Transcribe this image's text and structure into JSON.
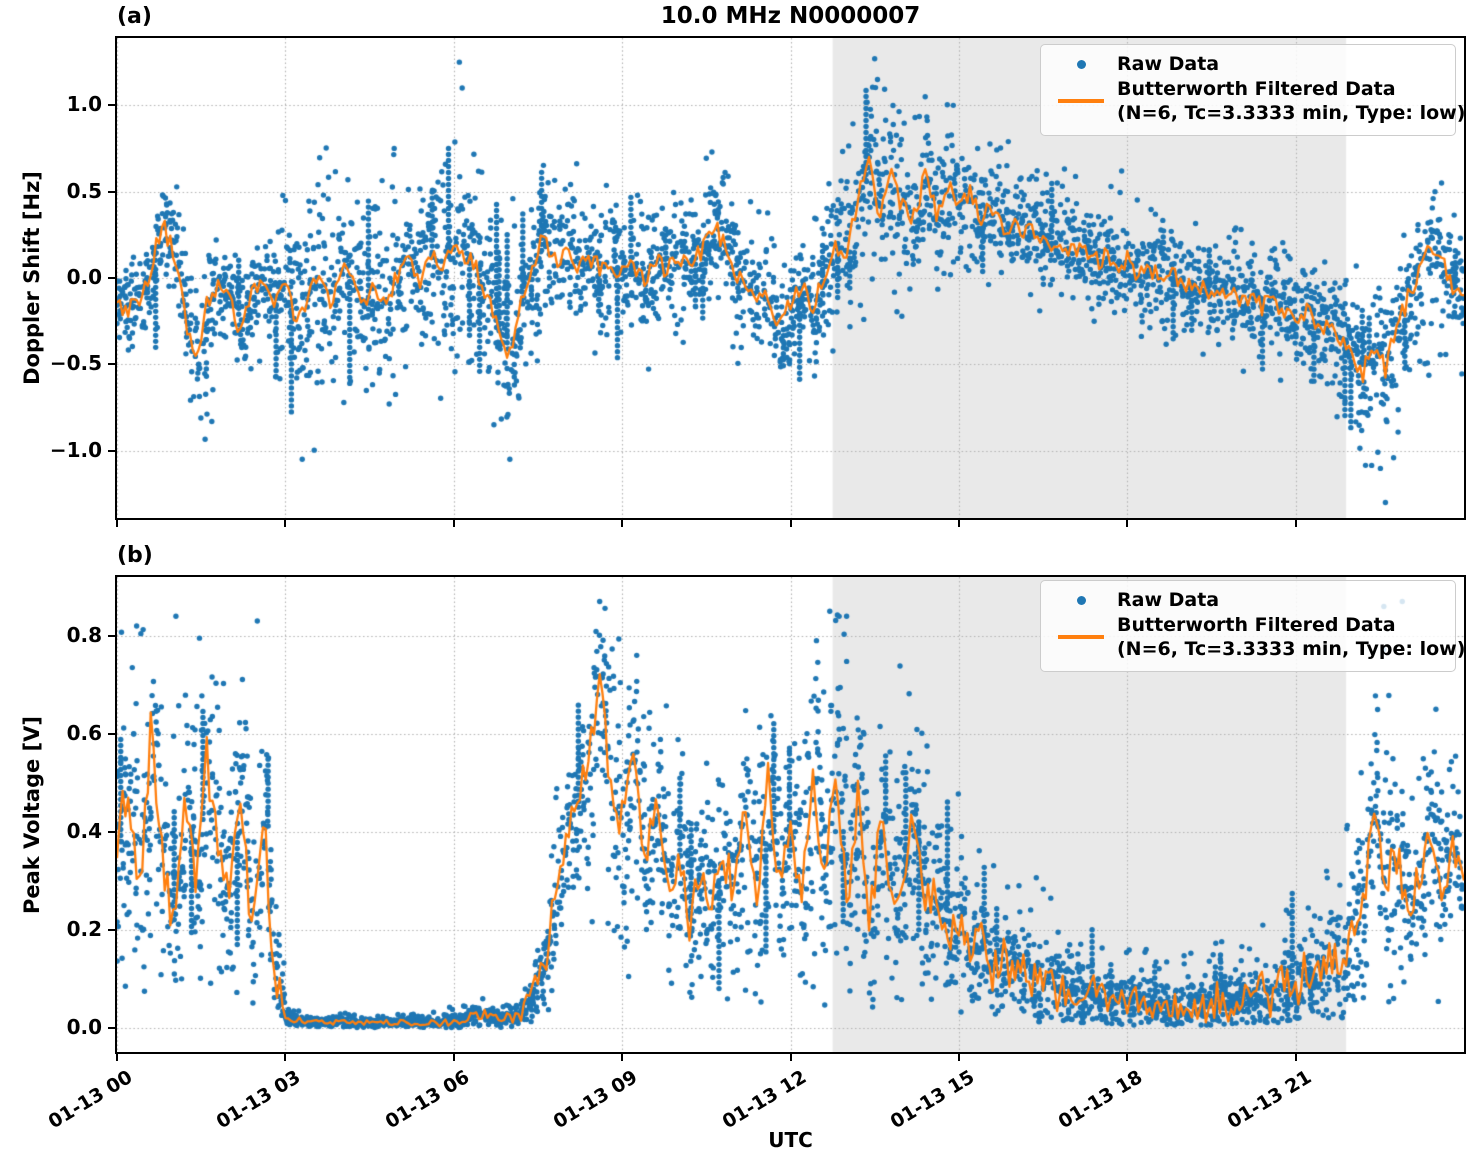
{
  "figure": {
    "title": "10.0 MHz N0000007",
    "xlabel": "UTC",
    "panel_a_tag": "(a)",
    "panel_b_tag": "(b)",
    "xtick_labels": [
      "01-13 00",
      "01-13 03",
      "01-13 06",
      "01-13 09",
      "01-13 12",
      "01-13 15",
      "01-13 18",
      "01-13 21"
    ],
    "colors": {
      "raw": "#1f77b4",
      "filtered": "#ff7f0e",
      "shade": "rgba(0,0,0,0.085)",
      "grid": "#b0b0b0",
      "spine": "#000000"
    },
    "legend": {
      "raw_label": "Raw Data",
      "filtered_label": "Butterworth Filtered Data",
      "filtered_sublabel": "(N=6, Tc=3.3333 min, Type: low)"
    }
  },
  "chart_data": [
    {
      "type": "scatter",
      "panel": "a",
      "ylabel": "Doppler Shift [Hz]",
      "ylim": [
        -1.39,
        1.39
      ],
      "yticks": [
        1.0,
        0.5,
        0.0,
        -0.5,
        -1.0
      ],
      "ytick_labels": [
        "1.0",
        "0.5",
        "0.0",
        "−0.5",
        "−1.0"
      ],
      "xlim_hours": [
        0,
        24
      ],
      "xticks_hours": [
        0,
        3,
        6,
        9,
        12,
        15,
        18,
        21
      ],
      "shaded_region_hours": [
        12.75,
        21.9
      ],
      "series": {
        "filtered": {
          "name": "Butterworth Filtered Doppler Shift",
          "x_step_hours": 0.2,
          "jitter": 0.06,
          "y": [
            -0.15,
            -0.18,
            -0.12,
            0.05,
            0.32,
            0.15,
            -0.2,
            -0.5,
            -0.12,
            -0.05,
            -0.12,
            -0.3,
            -0.1,
            -0.05,
            -0.12,
            -0.05,
            -0.25,
            -0.1,
            0.0,
            -0.15,
            0.08,
            -0.05,
            -0.18,
            -0.05,
            -0.15,
            0.02,
            0.1,
            -0.05,
            0.15,
            0.05,
            0.2,
            0.12,
            0.05,
            -0.1,
            -0.3,
            -0.45,
            -0.15,
            0.1,
            0.22,
            0.1,
            0.15,
            0.08,
            0.12,
            0.05,
            0.1,
            0.02,
            0.08,
            -0.02,
            0.1,
            0.05,
            0.12,
            0.08,
            0.15,
            0.3,
            0.22,
            0.05,
            -0.08,
            -0.15,
            -0.1,
            -0.3,
            -0.15,
            -0.05,
            -0.18,
            0.0,
            0.2,
            0.15,
            0.45,
            0.68,
            0.35,
            0.6,
            0.4,
            0.35,
            0.6,
            0.38,
            0.55,
            0.4,
            0.5,
            0.35,
            0.42,
            0.3,
            0.32,
            0.25,
            0.28,
            0.2,
            0.22,
            0.15,
            0.18,
            0.1,
            0.12,
            0.05,
            0.1,
            0.02,
            0.06,
            -0.02,
            0.03,
            -0.05,
            0.0,
            -0.08,
            -0.12,
            -0.08,
            -0.15,
            -0.1,
            -0.18,
            -0.12,
            -0.2,
            -0.25,
            -0.2,
            -0.3,
            -0.28,
            -0.38,
            -0.45,
            -0.55,
            -0.4,
            -0.52,
            -0.3,
            -0.12,
            0.05,
            0.2,
            0.1,
            -0.05,
            -0.1
          ]
        },
        "raw_envelope": {
          "x_step_hours": 0.5,
          "lo": [
            -0.45,
            -0.5,
            -0.35,
            -0.95,
            -0.5,
            -0.6,
            -0.9,
            -1.05,
            -0.85,
            -0.9,
            -0.8,
            -0.75,
            -0.7,
            -0.9,
            -1.05,
            -0.5,
            -0.45,
            -0.5,
            -0.55,
            -0.6,
            -0.5,
            -0.35,
            -0.5,
            -0.6,
            -0.75,
            -0.55,
            -0.3,
            -0.2,
            -0.25,
            -0.2,
            -0.15,
            -0.2,
            -0.25,
            -0.2,
            -0.3,
            -0.3,
            -0.35,
            -0.4,
            -0.45,
            -0.5,
            -0.55,
            -0.6,
            -0.65,
            -0.75,
            -0.95,
            -1.3,
            -0.8,
            -0.5,
            -0.6
          ],
          "hi": [
            0.15,
            0.3,
            0.65,
            0.2,
            0.25,
            0.3,
            0.75,
            0.8,
            0.7,
            0.75,
            0.8,
            0.75,
            0.9,
            0.8,
            0.5,
            0.7,
            0.75,
            0.6,
            0.5,
            0.55,
            0.6,
            0.75,
            0.55,
            0.4,
            0.35,
            0.5,
            0.9,
            1.27,
            1.1,
            1.05,
            1.0,
            0.85,
            0.8,
            0.7,
            0.6,
            0.55,
            0.5,
            0.45,
            0.4,
            0.35,
            0.3,
            0.25,
            0.2,
            0.15,
            0.1,
            0.05,
            0.3,
            0.55,
            0.4
          ]
        },
        "raw_outliers": [
          [
            3.3,
            -1.05
          ],
          [
            6.1,
            1.25
          ],
          [
            6.15,
            1.1
          ],
          [
            7.0,
            -1.05
          ],
          [
            10.6,
            0.73
          ],
          [
            13.5,
            1.27
          ],
          [
            13.55,
            1.15
          ],
          [
            14.4,
            1.05
          ],
          [
            14.9,
            1.0
          ],
          [
            17.9,
            0.62
          ],
          [
            22.6,
            -1.3
          ],
          [
            23.6,
            0.55
          ]
        ]
      }
    },
    {
      "type": "scatter",
      "panel": "b",
      "ylabel": "Peak Voltage [V]",
      "ylim": [
        -0.05,
        0.92
      ],
      "yticks": [
        0.8,
        0.6,
        0.4,
        0.2,
        0.0
      ],
      "ytick_labels": [
        "0.8",
        "0.6",
        "0.4",
        "0.2",
        "0.0"
      ],
      "xlim_hours": [
        0,
        24
      ],
      "xticks_hours": [
        0,
        3,
        6,
        9,
        12,
        15,
        18,
        21
      ],
      "shaded_region_hours": [
        12.75,
        21.9
      ],
      "series": {
        "filtered": {
          "name": "Butterworth Filtered Peak Voltage",
          "x_step_hours": 0.2,
          "jitter": 0.045,
          "y": [
            0.38,
            0.5,
            0.28,
            0.6,
            0.35,
            0.22,
            0.48,
            0.3,
            0.55,
            0.35,
            0.28,
            0.5,
            0.2,
            0.45,
            0.12,
            0.02,
            0.015,
            0.01,
            0.01,
            0.01,
            0.01,
            0.01,
            0.01,
            0.01,
            0.01,
            0.01,
            0.01,
            0.01,
            0.01,
            0.01,
            0.015,
            0.02,
            0.03,
            0.025,
            0.02,
            0.02,
            0.03,
            0.06,
            0.12,
            0.25,
            0.38,
            0.45,
            0.55,
            0.69,
            0.5,
            0.42,
            0.55,
            0.35,
            0.45,
            0.28,
            0.35,
            0.22,
            0.3,
            0.25,
            0.35,
            0.28,
            0.45,
            0.25,
            0.5,
            0.3,
            0.4,
            0.28,
            0.52,
            0.3,
            0.55,
            0.25,
            0.48,
            0.2,
            0.42,
            0.25,
            0.3,
            0.42,
            0.25,
            0.3,
            0.18,
            0.22,
            0.15,
            0.18,
            0.12,
            0.15,
            0.1,
            0.12,
            0.08,
            0.1,
            0.07,
            0.08,
            0.06,
            0.07,
            0.05,
            0.06,
            0.05,
            0.05,
            0.04,
            0.05,
            0.04,
            0.04,
            0.05,
            0.04,
            0.06,
            0.05,
            0.07,
            0.05,
            0.08,
            0.06,
            0.1,
            0.08,
            0.12,
            0.1,
            0.15,
            0.12,
            0.18,
            0.25,
            0.47,
            0.3,
            0.35,
            0.25,
            0.3,
            0.41,
            0.3,
            0.35,
            0.3
          ]
        },
        "raw_envelope": {
          "x_step_hours": 0.5,
          "lo": [
            0.05,
            0.08,
            0.05,
            0.1,
            0.05,
            0.05,
            0.0,
            0.0,
            0.0,
            0.0,
            0.0,
            0.0,
            0.0,
            0.0,
            0.0,
            0.02,
            0.1,
            0.2,
            0.1,
            0.08,
            0.05,
            0.05,
            0.06,
            0.05,
            0.05,
            0.04,
            0.05,
            0.04,
            0.05,
            0.04,
            0.03,
            0.02,
            0.02,
            0.01,
            0.01,
            0.01,
            0.005,
            0.005,
            0.005,
            0.005,
            0.01,
            0.01,
            0.01,
            0.02,
            0.02,
            0.03,
            0.03,
            0.04,
            0.05
          ],
          "hi": [
            0.82,
            0.85,
            0.8,
            0.85,
            0.81,
            0.83,
            0.05,
            0.03,
            0.03,
            0.03,
            0.03,
            0.03,
            0.05,
            0.06,
            0.05,
            0.2,
            0.7,
            0.87,
            0.8,
            0.7,
            0.6,
            0.65,
            0.7,
            0.75,
            0.72,
            0.85,
            0.84,
            0.65,
            0.78,
            0.6,
            0.45,
            0.35,
            0.3,
            0.32,
            0.25,
            0.2,
            0.18,
            0.15,
            0.15,
            0.18,
            0.22,
            0.25,
            0.3,
            0.35,
            0.5,
            0.87,
            0.55,
            0.65,
            0.55
          ]
        },
        "raw_outliers": [
          [
            0.35,
            0.82
          ],
          [
            1.05,
            0.84
          ],
          [
            2.5,
            0.83
          ],
          [
            8.6,
            0.87
          ],
          [
            12.7,
            0.85
          ],
          [
            13.0,
            0.84
          ],
          [
            22.9,
            0.87
          ],
          [
            23.5,
            0.65
          ]
        ]
      }
    }
  ]
}
